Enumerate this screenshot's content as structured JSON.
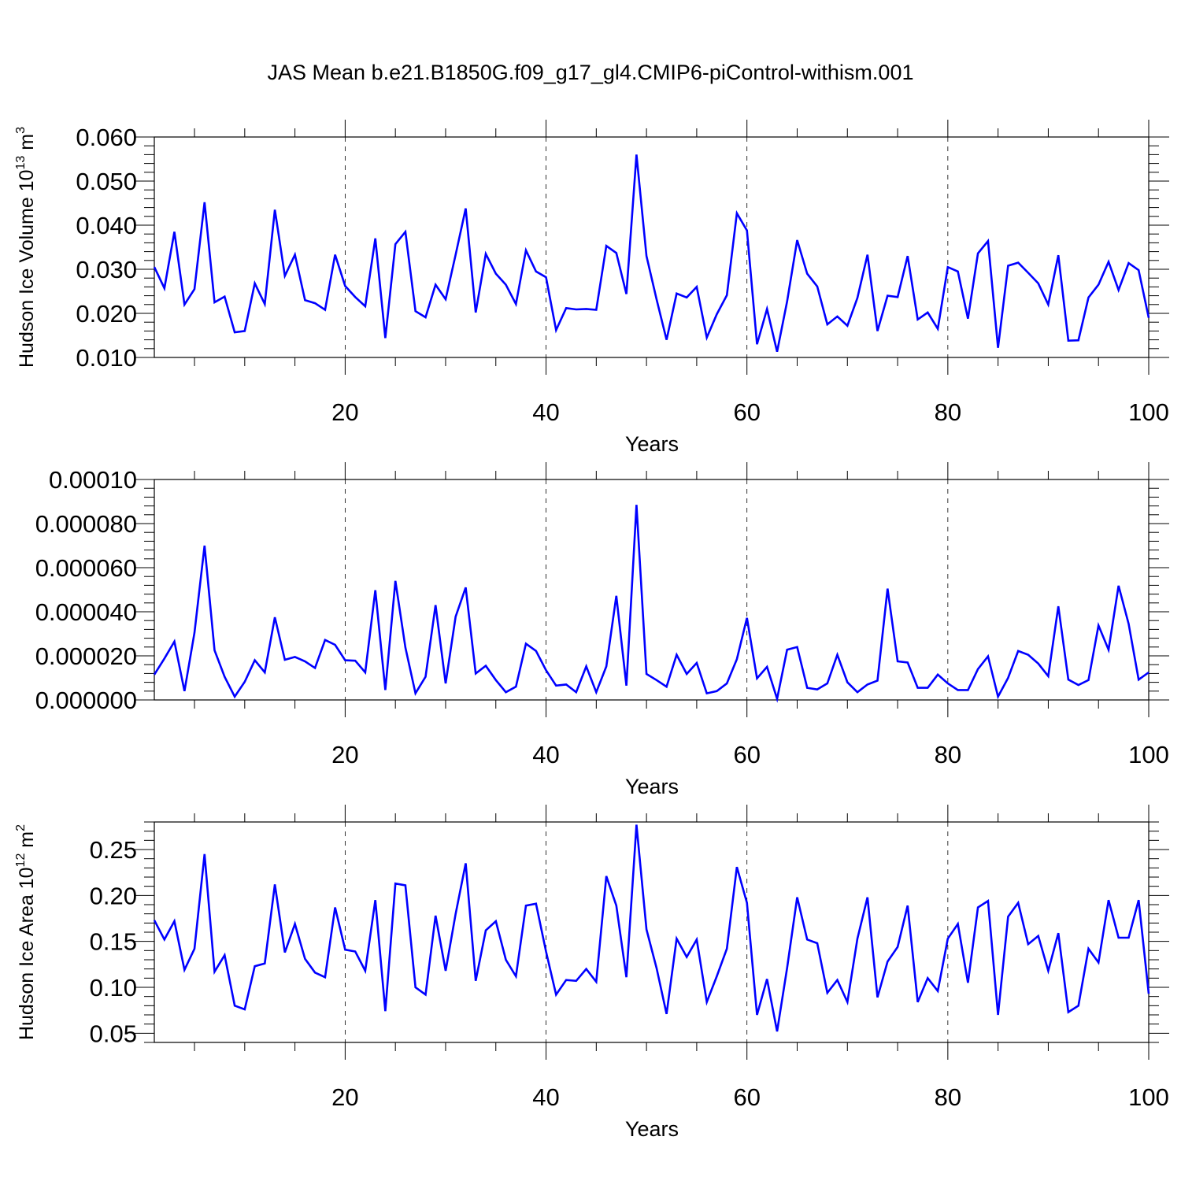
{
  "page": {
    "title": "JAS Mean b.e21.B1850G.f09_g17_gl4.CMIP6-piControl-withism.001"
  },
  "chart_data": [
    {
      "type": "line",
      "xlabel": "Years",
      "ylabel_main": "Hudson Ice Volume 10",
      "ylabel_sup1": "13",
      "ylabel_mid": " m",
      "ylabel_sup2": "3",
      "xlim": [
        1,
        100
      ],
      "ylim": [
        0.01,
        0.06
      ],
      "xticks": [
        20,
        40,
        60,
        80,
        100
      ],
      "xtick_labels": [
        "20",
        "40",
        "60",
        "80",
        "100"
      ],
      "yticks": [
        0.01,
        0.02,
        0.03,
        0.04,
        0.05,
        0.06
      ],
      "ytick_labels": [
        "0.010",
        "0.020",
        "0.030",
        "0.040",
        "0.050",
        "0.060"
      ],
      "grid_x": [
        20,
        40,
        60,
        80
      ],
      "line_color": "#0000ff",
      "series": [
        {
          "values": [
            0.0305,
            0.0257,
            0.0385,
            0.022,
            0.0255,
            0.0452,
            0.0225,
            0.0238,
            0.0157,
            0.016,
            0.0268,
            0.0221,
            0.0435,
            0.0285,
            0.0333,
            0.023,
            0.0223,
            0.0208,
            0.0333,
            0.0262,
            0.0237,
            0.0216,
            0.037,
            0.0144,
            0.0357,
            0.0385,
            0.0205,
            0.0191,
            0.0265,
            0.0232,
            0.0333,
            0.0438,
            0.0202,
            0.0335,
            0.029,
            0.0265,
            0.0221,
            0.0343,
            0.0295,
            0.0282,
            0.0162,
            0.0212,
            0.0209,
            0.021,
            0.0208,
            0.0353,
            0.0337,
            0.0244,
            0.056,
            0.033,
            0.0232,
            0.014,
            0.0245,
            0.0236,
            0.026,
            0.0145,
            0.0198,
            0.0241,
            0.0427,
            0.0388,
            0.013,
            0.021,
            0.0113,
            0.0227,
            0.0366,
            0.029,
            0.0261,
            0.0175,
            0.0193,
            0.0172,
            0.0235,
            0.0333,
            0.016,
            0.024,
            0.0237,
            0.033,
            0.0186,
            0.0202,
            0.0165,
            0.0305,
            0.0295,
            0.0188,
            0.0336,
            0.0364,
            0.0122,
            0.0308,
            0.0315,
            0.0292,
            0.0268,
            0.022,
            0.0332,
            0.0138,
            0.0139,
            0.0236,
            0.0265,
            0.0317,
            0.0253,
            0.0314,
            0.0298,
            0.019
          ]
        }
      ]
    },
    {
      "type": "line",
      "xlabel": "Years",
      "xlim": [
        1,
        100
      ],
      "ylim": [
        0.0,
        0.0001
      ],
      "xticks": [
        20,
        40,
        60,
        80,
        100
      ],
      "xtick_labels": [
        "20",
        "40",
        "60",
        "80",
        "100"
      ],
      "yticks": [
        0.0,
        2e-05,
        4e-05,
        6e-05,
        8e-05,
        0.0001
      ],
      "ytick_labels": [
        "0.000000",
        "0.000020",
        "0.000040",
        "0.000060",
        "0.000080",
        "0.00010"
      ],
      "grid_x": [
        20,
        40,
        60,
        80
      ],
      "line_color": "#0000ff",
      "series": [
        {
          "values": [
            1.15e-05,
            1.88e-05,
            2.65e-05,
            4e-06,
            3.05e-05,
            7e-05,
            2.25e-05,
            1.05e-05,
            1.5e-06,
            8.2e-06,
            1.8e-05,
            1.25e-05,
            3.75e-05,
            1.82e-05,
            1.95e-05,
            1.75e-05,
            1.45e-05,
            2.72e-05,
            2.5e-05,
            1.8e-05,
            1.78e-05,
            1.25e-05,
            4.98e-05,
            4.5e-06,
            5.4e-05,
            2.38e-05,
            3e-06,
            1.05e-05,
            4.3e-05,
            7.5e-06,
            3.78e-05,
            5.1e-05,
            1.2e-05,
            1.55e-05,
            9e-06,
            3.5e-06,
            6e-06,
            2.55e-05,
            2.22e-05,
            1.35e-05,
            6.5e-06,
            7e-06,
            3.5e-06,
            1.52e-05,
            3.5e-06,
            1.52e-05,
            4.72e-05,
            6.5e-06,
            8.85e-05,
            1.18e-05,
            9e-06,
            6e-06,
            2.05e-05,
            1.18e-05,
            1.68e-05,
            3e-06,
            4e-06,
            7.5e-06,
            1.85e-05,
            3.72e-05,
            9.8e-06,
            1.5e-05,
            5e-07,
            2.28e-05,
            2.4e-05,
            5.5e-06,
            4.8e-06,
            7.5e-06,
            2.05e-05,
            8e-06,
            3.5e-06,
            7e-06,
            8.8e-06,
            5.05e-05,
            1.75e-05,
            1.7e-05,
            5.5e-06,
            5.5e-06,
            1.15e-05,
            7.5e-06,
            4.5e-06,
            4.5e-06,
            1.4e-05,
            1.98e-05,
            1.5e-06,
            1e-05,
            2.22e-05,
            2.05e-05,
            1.65e-05,
            1.08e-05,
            4.25e-05,
            9.2e-06,
            6.8e-06,
            9e-06,
            3.38e-05,
            2.28e-05,
            5.18e-05,
            3.45e-05,
            9.2e-06,
            1.25e-05
          ]
        }
      ]
    },
    {
      "type": "line",
      "xlabel": "Years",
      "ylabel_main": "Hudson Ice Area 10",
      "ylabel_sup1": "12",
      "ylabel_mid": " m",
      "ylabel_sup2": "2",
      "xlim": [
        1,
        100
      ],
      "ylim": [
        0.04,
        0.28
      ],
      "xticks": [
        20,
        40,
        60,
        80,
        100
      ],
      "xtick_labels": [
        "20",
        "40",
        "60",
        "80",
        "100"
      ],
      "yticks": [
        0.05,
        0.1,
        0.15,
        0.2,
        0.25
      ],
      "ytick_labels": [
        "0.05",
        "0.10",
        "0.15",
        "0.20",
        "0.25"
      ],
      "grid_x": [
        20,
        40,
        60,
        80
      ],
      "line_color": "#0000ff",
      "series": [
        {
          "values": [
            0.173,
            0.152,
            0.172,
            0.119,
            0.142,
            0.245,
            0.117,
            0.135,
            0.08,
            0.076,
            0.123,
            0.126,
            0.212,
            0.138,
            0.169,
            0.131,
            0.116,
            0.111,
            0.187,
            0.141,
            0.139,
            0.118,
            0.195,
            0.074,
            0.213,
            0.211,
            0.1,
            0.092,
            0.178,
            0.118,
            0.18,
            0.235,
            0.107,
            0.162,
            0.172,
            0.13,
            0.112,
            0.189,
            0.191,
            0.139,
            0.092,
            0.108,
            0.107,
            0.12,
            0.106,
            0.221,
            0.189,
            0.111,
            0.277,
            0.163,
            0.121,
            0.071,
            0.153,
            0.133,
            0.152,
            0.084,
            0.112,
            0.142,
            0.231,
            0.192,
            0.07,
            0.109,
            0.052,
            0.121,
            0.198,
            0.152,
            0.148,
            0.094,
            0.108,
            0.084,
            0.153,
            0.198,
            0.089,
            0.128,
            0.144,
            0.189,
            0.084,
            0.11,
            0.096,
            0.153,
            0.169,
            0.105,
            0.187,
            0.194,
            0.07,
            0.177,
            0.192,
            0.147,
            0.156,
            0.118,
            0.159,
            0.073,
            0.08,
            0.142,
            0.127,
            0.195,
            0.154,
            0.154,
            0.195,
            0.093
          ]
        }
      ]
    }
  ]
}
